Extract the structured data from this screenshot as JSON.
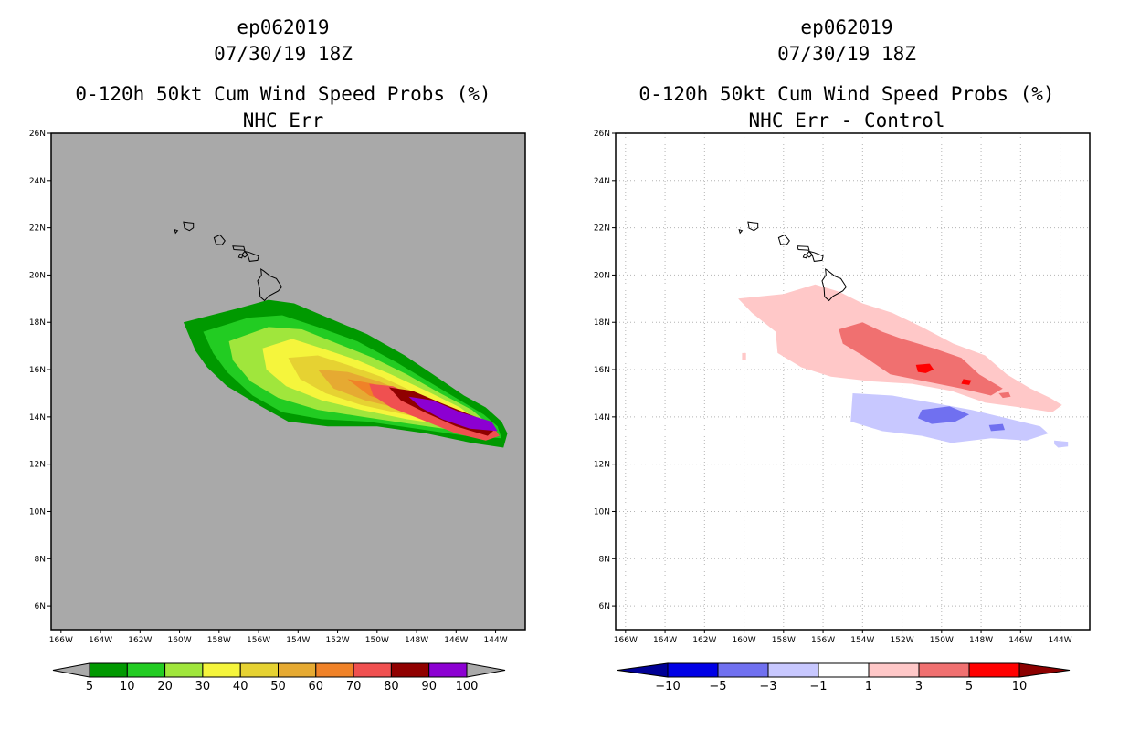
{
  "chart_data": [
    {
      "type": "map",
      "title": [
        "ep062019",
        "07/30/19 18Z",
        "0-120h 50kt Cum Wind Speed Probs (%)",
        "NHC Err"
      ],
      "lon_ticks": [
        "166W",
        "164W",
        "162W",
        "160W",
        "158W",
        "156W",
        "154W",
        "152W",
        "150W",
        "148W",
        "146W",
        "144W"
      ],
      "lat_ticks": [
        "26N",
        "24N",
        "22N",
        "20N",
        "18N",
        "16N",
        "14N",
        "12N",
        "10N",
        "8N",
        "6N"
      ],
      "lon_range": [
        -166.5,
        -142.5
      ],
      "lat_range": [
        5,
        26
      ],
      "background_color": "#a9a9a9",
      "colorbar": {
        "labels": [
          "5",
          "10",
          "20",
          "30",
          "40",
          "50",
          "60",
          "70",
          "80",
          "90",
          "100"
        ],
        "colors": [
          "#009900",
          "#22cc22",
          "#a0e63c",
          "#f5f53c",
          "#e6d232",
          "#e6aa32",
          "#f08228",
          "#f05050",
          "#900000",
          "#8c00d2"
        ],
        "under_color": "#aaaaaa",
        "over_color": "#aaaaaa"
      },
      "fields": [
        {
          "level": 5,
          "pts": [
            [
              -159.8,
              18.0
            ],
            [
              -157.0,
              18.6
            ],
            [
              -155.5,
              18.95
            ],
            [
              -154.2,
              18.8
            ],
            [
              -152.5,
              18.2
            ],
            [
              -150.5,
              17.5
            ],
            [
              -148.6,
              16.6
            ],
            [
              -147.0,
              15.7
            ],
            [
              -145.6,
              14.9
            ],
            [
              -144.5,
              14.4
            ],
            [
              -143.7,
              13.8
            ],
            [
              -143.4,
              13.3
            ],
            [
              -143.6,
              12.7
            ],
            [
              -145.2,
              12.9
            ],
            [
              -147.5,
              13.3
            ],
            [
              -150.0,
              13.6
            ],
            [
              -152.5,
              13.6
            ],
            [
              -154.5,
              13.8
            ],
            [
              -156.0,
              14.5
            ],
            [
              -157.6,
              15.3
            ],
            [
              -158.6,
              16.1
            ],
            [
              -159.2,
              16.8
            ]
          ]
        },
        {
          "level": 10,
          "pts": [
            [
              -158.8,
              17.6
            ],
            [
              -156.5,
              18.2
            ],
            [
              -154.8,
              18.3
            ],
            [
              -153.0,
              17.8
            ],
            [
              -151.0,
              17.2
            ],
            [
              -149.0,
              16.3
            ],
            [
              -147.4,
              15.5
            ],
            [
              -145.8,
              14.7
            ],
            [
              -144.6,
              14.1
            ],
            [
              -143.9,
              13.6
            ],
            [
              -143.7,
              13.1
            ],
            [
              -145.5,
              13.2
            ],
            [
              -148.0,
              13.5
            ],
            [
              -150.5,
              13.8
            ],
            [
              -152.8,
              13.9
            ],
            [
              -154.8,
              14.2
            ],
            [
              -156.3,
              14.9
            ],
            [
              -157.6,
              15.9
            ],
            [
              -158.3,
              16.7
            ]
          ]
        },
        {
          "level": 20,
          "pts": [
            [
              -157.5,
              17.2
            ],
            [
              -155.5,
              17.8
            ],
            [
              -153.8,
              17.7
            ],
            [
              -152.0,
              17.1
            ],
            [
              -150.2,
              16.5
            ],
            [
              -148.5,
              15.8
            ],
            [
              -146.8,
              15.0
            ],
            [
              -145.2,
              14.3
            ],
            [
              -144.1,
              13.5
            ],
            [
              -145.8,
              13.4
            ],
            [
              -148.3,
              13.7
            ],
            [
              -150.7,
              14.0
            ],
            [
              -153.0,
              14.3
            ],
            [
              -155.0,
              14.8
            ],
            [
              -156.4,
              15.5
            ],
            [
              -157.3,
              16.4
            ]
          ]
        },
        {
          "level": 30,
          "pts": [
            [
              -155.8,
              16.9
            ],
            [
              -154.3,
              17.3
            ],
            [
              -152.8,
              16.9
            ],
            [
              -151.0,
              16.4
            ],
            [
              -149.3,
              15.8
            ],
            [
              -147.5,
              15.1
            ],
            [
              -145.8,
              14.4
            ],
            [
              -144.5,
              13.6
            ],
            [
              -146.0,
              13.6
            ],
            [
              -148.5,
              13.9
            ],
            [
              -150.8,
              14.3
            ],
            [
              -152.8,
              14.7
            ],
            [
              -154.6,
              15.3
            ],
            [
              -155.6,
              16.0
            ]
          ]
        },
        {
          "level": 40,
          "pts": [
            [
              -154.5,
              16.5
            ],
            [
              -153.0,
              16.6
            ],
            [
              -151.5,
              16.2
            ],
            [
              -149.8,
              15.7
            ],
            [
              -148.0,
              15.0
            ],
            [
              -146.2,
              14.3
            ],
            [
              -144.7,
              13.6
            ],
            [
              -146.2,
              13.7
            ],
            [
              -148.6,
              14.1
            ],
            [
              -150.8,
              14.5
            ],
            [
              -152.6,
              15.0
            ],
            [
              -153.9,
              15.6
            ]
          ]
        },
        {
          "level": 50,
          "pts": [
            [
              -153.0,
              16.0
            ],
            [
              -151.5,
              15.9
            ],
            [
              -149.9,
              15.5
            ],
            [
              -148.2,
              14.9
            ],
            [
              -146.4,
              14.2
            ],
            [
              -144.8,
              13.6
            ],
            [
              -146.3,
              13.8
            ],
            [
              -148.6,
              14.3
            ],
            [
              -150.6,
              14.7
            ],
            [
              -152.2,
              15.2
            ]
          ]
        },
        {
          "level": 60,
          "pts": [
            [
              -151.5,
              15.6
            ],
            [
              -150.2,
              15.4
            ],
            [
              -148.5,
              14.8
            ],
            [
              -146.6,
              14.1
            ],
            [
              -145.0,
              13.5
            ],
            [
              -146.5,
              13.9
            ],
            [
              -148.6,
              14.4
            ],
            [
              -150.4,
              14.9
            ]
          ]
        },
        {
          "level": 70,
          "pts": [
            [
              -150.4,
              15.4
            ],
            [
              -149.2,
              15.3
            ],
            [
              -147.6,
              14.7
            ],
            [
              -146.0,
              14.0
            ],
            [
              -144.3,
              13.8
            ],
            [
              -143.8,
              13.2
            ],
            [
              -144.5,
              13.0
            ],
            [
              -146.0,
              13.3
            ],
            [
              -147.8,
              13.9
            ],
            [
              -149.3,
              14.4
            ],
            [
              -150.2,
              14.9
            ]
          ]
        },
        {
          "level": 80,
          "pts": [
            [
              -149.4,
              15.25
            ],
            [
              -148.2,
              15.1
            ],
            [
              -146.8,
              14.6
            ],
            [
              -145.0,
              14.0
            ],
            [
              -144.0,
              13.5
            ],
            [
              -144.4,
              13.2
            ],
            [
              -146.0,
              13.6
            ],
            [
              -147.6,
              14.2
            ],
            [
              -148.8,
              14.7
            ]
          ]
        },
        {
          "level": 90,
          "pts": [
            [
              -148.4,
              14.85
            ],
            [
              -147.2,
              14.7
            ],
            [
              -145.8,
              14.2
            ],
            [
              -144.2,
              13.8
            ],
            [
              -143.9,
              13.4
            ],
            [
              -145.3,
              13.5
            ],
            [
              -146.7,
              13.9
            ],
            [
              -147.8,
              14.4
            ]
          ]
        }
      ]
    },
    {
      "type": "map",
      "title": [
        "ep062019",
        "07/30/19 18Z",
        "0-120h 50kt Cum Wind Speed Probs (%)",
        "NHC Err - Control"
      ],
      "lon_ticks": [
        "166W",
        "164W",
        "162W",
        "160W",
        "158W",
        "156W",
        "154W",
        "152W",
        "150W",
        "148W",
        "146W",
        "144W"
      ],
      "lat_ticks": [
        "26N",
        "24N",
        "22N",
        "20N",
        "18N",
        "16N",
        "14N",
        "12N",
        "10N",
        "8N",
        "6N"
      ],
      "lon_range": [
        -166.5,
        -142.5
      ],
      "lat_range": [
        5,
        26
      ],
      "background_color": "#ffffff",
      "grid": true,
      "colorbar": {
        "labels": [
          "-10",
          "-5",
          "-3",
          "-1",
          "1",
          "3",
          "5",
          "10"
        ],
        "colors": [
          "#0000e6",
          "#7070f0",
          "#c8c8ff",
          "#ffffff",
          "#ffc8c8",
          "#f07070",
          "#ff0000"
        ],
        "under_color": "#000096",
        "over_color": "#8c0000"
      },
      "fields": [
        {
          "level": 1,
          "pts": [
            [
              -160.3,
              19.0
            ],
            [
              -158.0,
              19.2
            ],
            [
              -156.4,
              19.6
            ],
            [
              -155.2,
              19.3
            ],
            [
              -154.0,
              18.8
            ],
            [
              -152.5,
              18.4
            ],
            [
              -151.0,
              17.8
            ],
            [
              -149.4,
              17.1
            ],
            [
              -147.8,
              16.6
            ],
            [
              -146.7,
              15.8
            ],
            [
              -145.5,
              15.2
            ],
            [
              -144.5,
              14.8
            ],
            [
              -143.9,
              14.5
            ],
            [
              -144.4,
              14.2
            ],
            [
              -146.0,
              14.4
            ],
            [
              -147.8,
              14.6
            ],
            [
              -149.5,
              15.1
            ],
            [
              -151.5,
              15.4
            ],
            [
              -153.5,
              15.5
            ],
            [
              -155.6,
              15.7
            ],
            [
              -157.1,
              16.1
            ],
            [
              -158.3,
              16.7
            ],
            [
              -158.4,
              17.6
            ],
            [
              -159.6,
              18.4
            ]
          ]
        },
        {
          "level": 1,
          "pts": [
            [
              -160.1,
              16.7
            ],
            [
              -159.9,
              16.7
            ],
            [
              -159.9,
              16.4
            ],
            [
              -160.1,
              16.4
            ]
          ]
        },
        {
          "level": -1,
          "pts": [
            [
              -154.5,
              15.0
            ],
            [
              -152.5,
              14.9
            ],
            [
              -150.5,
              14.6
            ],
            [
              -148.5,
              14.3
            ],
            [
              -146.5,
              13.9
            ],
            [
              -145.0,
              13.6
            ],
            [
              -144.6,
              13.3
            ],
            [
              -145.7,
              13.0
            ],
            [
              -147.5,
              13.1
            ],
            [
              -149.5,
              12.9
            ],
            [
              -151.0,
              13.2
            ],
            [
              -153.0,
              13.4
            ],
            [
              -154.6,
              13.8
            ]
          ]
        },
        {
          "level": -1,
          "pts": [
            [
              -144.3,
              13.0
            ],
            [
              -143.6,
              12.95
            ],
            [
              -143.6,
              12.75
            ],
            [
              -144.1,
              12.7
            ],
            [
              -144.3,
              12.85
            ]
          ]
        },
        {
          "level": 3,
          "pts": [
            [
              -155.2,
              17.7
            ],
            [
              -154.0,
              18.0
            ],
            [
              -153.0,
              17.6
            ],
            [
              -152.0,
              17.3
            ],
            [
              -150.4,
              16.9
            ],
            [
              -149.0,
              16.5
            ],
            [
              -148.1,
              15.8
            ],
            [
              -146.9,
              15.2
            ],
            [
              -147.5,
              14.9
            ],
            [
              -149.0,
              15.2
            ],
            [
              -150.8,
              15.5
            ],
            [
              -152.6,
              15.8
            ],
            [
              -154.0,
              16.6
            ],
            [
              -155.0,
              17.1
            ]
          ]
        },
        {
          "level": 3,
          "pts": [
            [
              -147.1,
              15.0
            ],
            [
              -146.6,
              15.05
            ],
            [
              -146.5,
              14.85
            ],
            [
              -146.9,
              14.8
            ]
          ]
        },
        {
          "level": 5,
          "pts": [
            [
              -151.3,
              16.2
            ],
            [
              -150.6,
              16.25
            ],
            [
              -150.4,
              16.0
            ],
            [
              -150.8,
              15.85
            ],
            [
              -151.2,
              15.9
            ]
          ]
        },
        {
          "level": 5,
          "pts": [
            [
              -148.9,
              15.6
            ],
            [
              -148.5,
              15.55
            ],
            [
              -148.6,
              15.35
            ],
            [
              -149.0,
              15.4
            ]
          ]
        },
        {
          "level": -3,
          "pts": [
            [
              -151.0,
              14.3
            ],
            [
              -149.6,
              14.45
            ],
            [
              -148.6,
              14.1
            ],
            [
              -149.3,
              13.8
            ],
            [
              -150.5,
              13.7
            ],
            [
              -151.2,
              13.95
            ]
          ]
        },
        {
          "level": -3,
          "pts": [
            [
              -147.6,
              13.65
            ],
            [
              -146.9,
              13.7
            ],
            [
              -146.8,
              13.45
            ],
            [
              -147.5,
              13.4
            ]
          ]
        }
      ]
    }
  ]
}
